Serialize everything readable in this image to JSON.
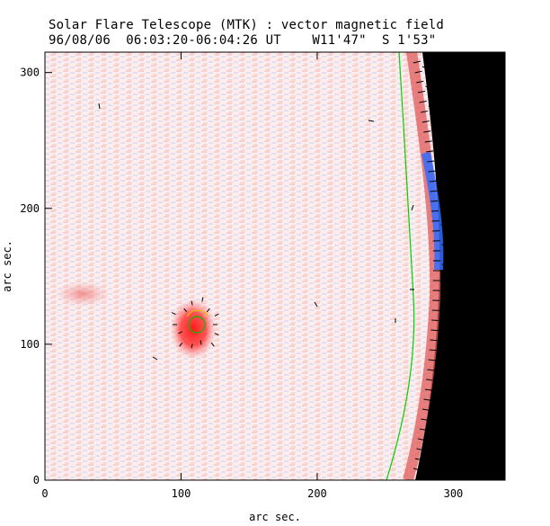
{
  "header": {
    "title": "Solar Flare Telescope (MTK) : vector magnetic field",
    "subtitle": "96/08/06  06:03:20-06:04:26 UT    W11'47\"  S 1'53\""
  },
  "chart_data": {
    "type": "heatmap",
    "xlabel": "arc sec.",
    "ylabel": "arc sec.",
    "xlim": [
      0,
      338
    ],
    "ylim": [
      0,
      315
    ],
    "x_ticks": [
      0,
      100,
      200,
      300
    ],
    "y_ticks": [
      0,
      100,
      200,
      300
    ],
    "grid": false,
    "legend": "none",
    "colors": {
      "positive_field": "#f08080",
      "negative_field": "#6a7cf0",
      "sunspot_core": "#ff2a2a",
      "contour": "#00d000",
      "vectors": "#000000",
      "off_limb": "#000000",
      "limb_emission": "#2f6bff"
    }
  }
}
